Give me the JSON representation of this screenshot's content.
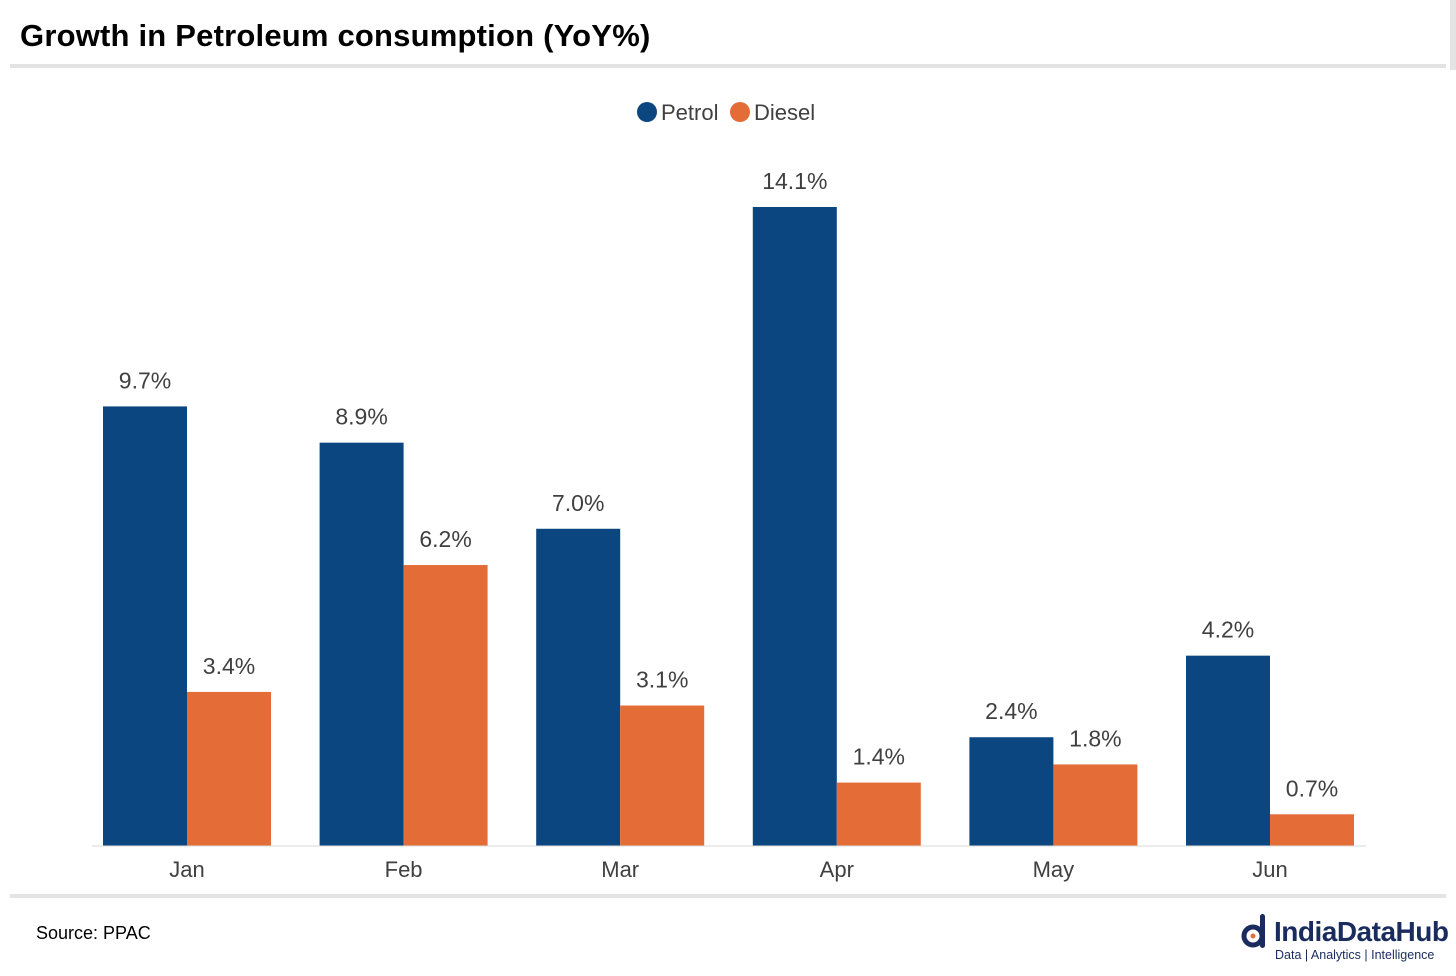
{
  "title": "Growth in Petroleum consumption (YoY%)",
  "source": "Source: PPAC",
  "brand": {
    "name": "IndiaDataHub",
    "tagline": "Data | Analytics | Intelligence",
    "color": "#1a2b5e"
  },
  "chart_data": {
    "type": "bar",
    "categories": [
      "Jan",
      "Feb",
      "Mar",
      "Apr",
      "May",
      "Jun"
    ],
    "series": [
      {
        "name": "Petrol",
        "color": "#0b4680",
        "values": [
          9.7,
          8.9,
          7.0,
          14.1,
          2.4,
          4.2
        ],
        "labels": [
          "9.7%",
          "8.9%",
          "7.0%",
          "14.1%",
          "2.4%",
          "4.2%"
        ]
      },
      {
        "name": "Diesel",
        "color": "#e46d37",
        "values": [
          3.4,
          6.2,
          3.1,
          1.4,
          1.8,
          0.7
        ],
        "labels": [
          "3.4%",
          "6.2%",
          "3.1%",
          "1.4%",
          "1.8%",
          "0.7%"
        ]
      }
    ],
    "ylim": [
      0,
      14.1
    ],
    "grid": false,
    "legend": "top-center"
  }
}
